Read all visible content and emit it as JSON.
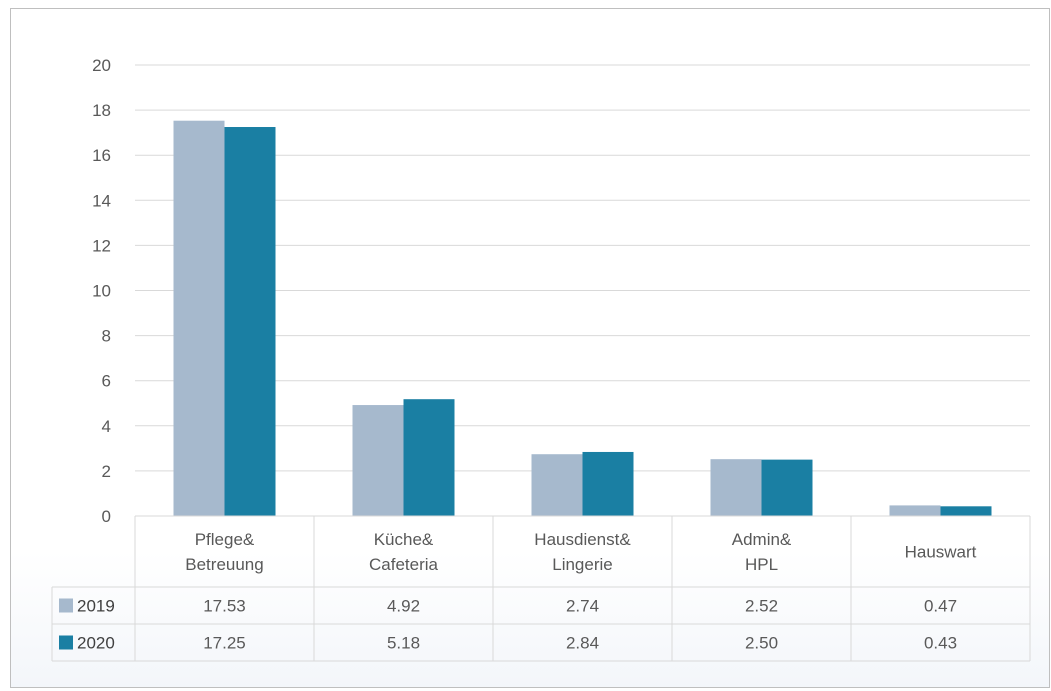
{
  "chart_data": {
    "type": "bar",
    "title": "",
    "xlabel": "",
    "ylabel": "",
    "ylim": [
      0,
      20
    ],
    "yticks": [
      0,
      2,
      4,
      6,
      8,
      10,
      12,
      14,
      16,
      18,
      20
    ],
    "grid": true,
    "legend": "data-table-left",
    "categories": [
      [
        "Pflege&",
        "Betreuung"
      ],
      [
        "Küche&",
        "Cafeteria"
      ],
      [
        "Hausdienst&",
        "Lingerie"
      ],
      [
        "Admin&",
        "HPL"
      ],
      [
        "Hauswart"
      ]
    ],
    "series": [
      {
        "name": "2019",
        "color": "#a6b9cd",
        "values": [
          17.53,
          4.92,
          2.74,
          2.52,
          0.47
        ],
        "labels": [
          "17.53",
          "4.92",
          "2.74",
          "2.52",
          "0.47"
        ]
      },
      {
        "name": "2020",
        "color": "#1a7fa3",
        "values": [
          17.25,
          5.18,
          2.84,
          2.5,
          0.43
        ],
        "labels": [
          "17.25",
          "5.18",
          "2.84",
          "2.50",
          "0.43"
        ]
      }
    ]
  },
  "colors": {
    "grid": "#d9d9d9",
    "table_border": "#d9d9d9",
    "text": "#595959"
  }
}
